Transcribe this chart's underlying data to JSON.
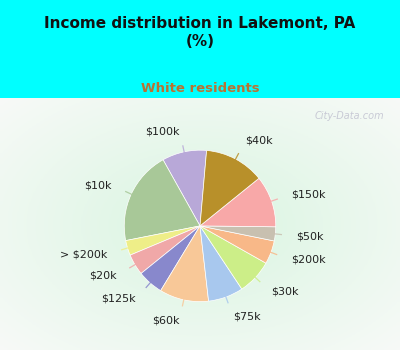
{
  "title": "Income distribution in Lakemont, PA\n(%)",
  "subtitle": "White residents",
  "title_color": "#111111",
  "subtitle_color": "#b87333",
  "bg_top": "#00ffff",
  "bg_chart_color1": "#d8f0e8",
  "bg_chart_color2": "#f0f8f0",
  "labels": [
    "$100k",
    "$10k",
    "> $200k",
    "$20k",
    "$125k",
    "$60k",
    "$75k",
    "$30k",
    "$200k",
    "$50k",
    "$150k",
    "$40k"
  ],
  "values": [
    9.5,
    20.0,
    3.2,
    4.5,
    5.5,
    10.5,
    7.5,
    7.5,
    5.0,
    3.0,
    11.0,
    12.8
  ],
  "colors": [
    "#b8a8d8",
    "#a8c898",
    "#eeee88",
    "#f0a8a8",
    "#8888cc",
    "#f8c898",
    "#a8c8ee",
    "#ccee88",
    "#f8b888",
    "#c8c0b0",
    "#f8a8a8",
    "#b8902a"
  ],
  "startangle": 85,
  "label_fontsize": 8,
  "watermark": "City-Data.com"
}
